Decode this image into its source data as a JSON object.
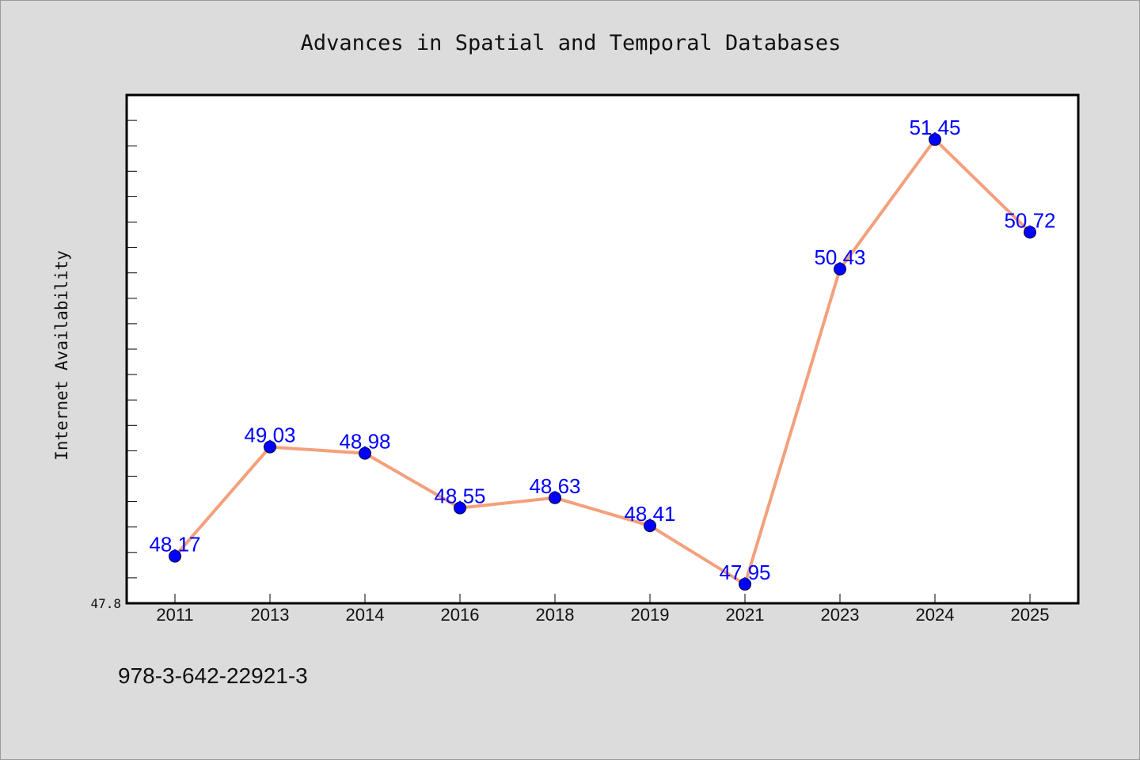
{
  "chart_data": {
    "type": "line",
    "title": "Advances in Spatial and Temporal Databases",
    "xlabel": "",
    "ylabel": "Internet Availability",
    "categories": [
      "2011",
      "2013",
      "2014",
      "2016",
      "2018",
      "2019",
      "2021",
      "2023",
      "2024",
      "2025"
    ],
    "series": [
      {
        "values": [
          48.17,
          49.03,
          48.98,
          48.55,
          48.63,
          48.41,
          47.95,
          50.43,
          51.45,
          50.72
        ],
        "line_color": "#f4a07c",
        "marker_color": "#0000ff"
      }
    ],
    "data_labels": [
      "48.17",
      "49.03",
      "48.98",
      "48.55",
      "48.63",
      "48.41",
      "47.95",
      "50.43",
      "51.45",
      "50.72"
    ],
    "ylim": [
      47.8,
      51.8
    ],
    "yticks_labeled": [
      "47.8"
    ],
    "grid": false,
    "legend": "none"
  },
  "footer": {
    "text": "978-3-642-22921-3"
  },
  "colors": {
    "background": "#dcdcdc",
    "plot_background": "#ffffff",
    "axis": "#000000",
    "label": "#0000ff",
    "line": "#f4a07c"
  }
}
